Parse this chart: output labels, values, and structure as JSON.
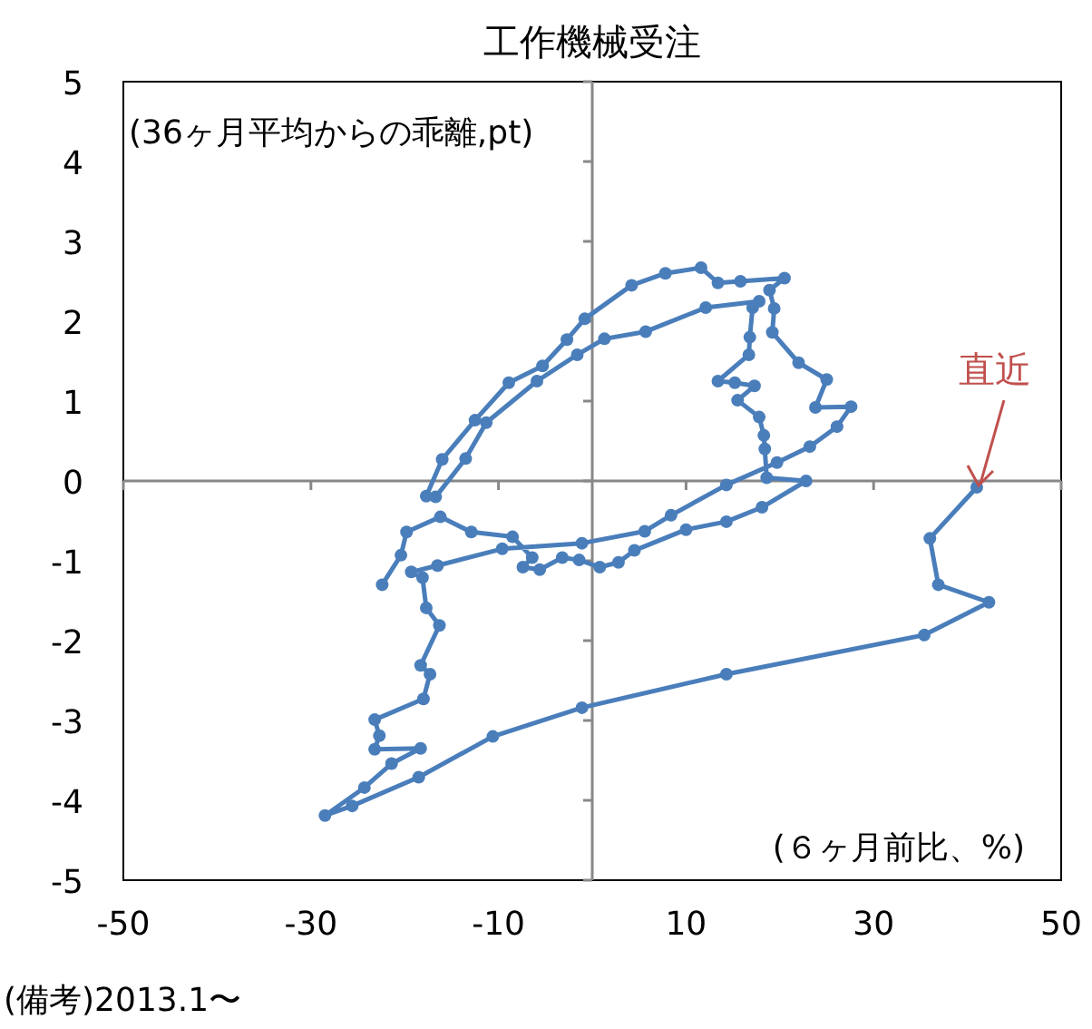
{
  "chart_data": {
    "type": "line",
    "title": "工作機械受注",
    "xlabel": "(６ヶ月前比、%)",
    "ylabel": "(36ヶ月平均からの乖離,pt)",
    "xlim": [
      -50,
      50
    ],
    "xticks": [
      -50,
      -30,
      -10,
      10,
      30,
      50
    ],
    "ylim": [
      -5,
      5
    ],
    "yticks": [
      -5,
      -4,
      -3,
      -2,
      -1,
      0,
      1,
      2,
      3,
      4,
      5
    ],
    "marker": "circle",
    "line_style": "solid",
    "annotations": [
      {
        "text": "直近",
        "x": 41.0,
        "y": -0.08
      },
      "(備考)2013.1〜"
    ],
    "series": [
      {
        "color": "#4a7ebb",
        "x": [
          -22.4,
          -20.4,
          -19.8,
          -16.2,
          -12.9,
          -8.5,
          -6.4,
          -7.4,
          -5.6,
          -3.2,
          -1.4,
          0.8,
          2.8,
          4.5,
          10.0,
          14.3,
          18.1,
          22.8,
          18.6,
          18.4,
          18.3,
          17.8,
          15.5,
          17.3,
          15.2,
          13.4,
          16.7,
          16.8,
          17.1,
          17.8,
          12.1,
          5.7,
          1.3,
          -1.6,
          -5.9,
          -11.3,
          -13.5,
          -16.7,
          -17.7,
          -16.0,
          -12.5,
          -8.9,
          -5.3,
          -2.7,
          -0.8,
          4.2,
          7.8,
          11.6,
          13.4,
          15.8,
          20.5,
          18.9,
          19.4,
          19.2,
          22.0,
          25.0,
          23.8,
          27.6,
          26.1,
          23.2,
          19.7,
          14.3,
          8.4,
          5.6,
          -1.1,
          -9.6,
          -16.5,
          -19.3,
          -18.1,
          -17.7,
          -16.3,
          -18.3,
          -17.3,
          -18.0,
          -23.2,
          -22.7,
          -23.2,
          -18.3,
          -21.4,
          -24.3,
          -28.5,
          -25.6,
          -18.5,
          -10.6,
          -1.1,
          14.3,
          35.4,
          42.3,
          36.9,
          36.0,
          41.0
        ],
        "values": [
          -1.3,
          -0.93,
          -0.64,
          -0.45,
          -0.64,
          -0.7,
          -0.96,
          -1.08,
          -1.11,
          -0.96,
          -0.99,
          -1.08,
          -1.02,
          -0.87,
          -0.61,
          -0.51,
          -0.33,
          0.0,
          0.04,
          0.4,
          0.57,
          0.8,
          1.01,
          1.19,
          1.23,
          1.25,
          1.58,
          1.8,
          2.17,
          2.25,
          2.17,
          1.87,
          1.78,
          1.58,
          1.25,
          0.73,
          0.28,
          -0.2,
          -0.19,
          0.27,
          0.76,
          1.23,
          1.44,
          1.77,
          2.03,
          2.45,
          2.6,
          2.67,
          2.48,
          2.5,
          2.54,
          2.39,
          2.16,
          1.86,
          1.48,
          1.27,
          0.92,
          0.93,
          0.68,
          0.43,
          0.23,
          -0.05,
          -0.43,
          -0.63,
          -0.78,
          -0.85,
          -1.06,
          -1.14,
          -1.21,
          -1.59,
          -1.81,
          -2.31,
          -2.42,
          -2.73,
          -2.99,
          -3.19,
          -3.36,
          -3.35,
          -3.54,
          -3.84,
          -4.19,
          -4.07,
          -3.71,
          -3.2,
          -2.84,
          -2.42,
          -1.93,
          -1.52,
          -1.3,
          -0.72,
          -0.08
        ]
      }
    ]
  }
}
